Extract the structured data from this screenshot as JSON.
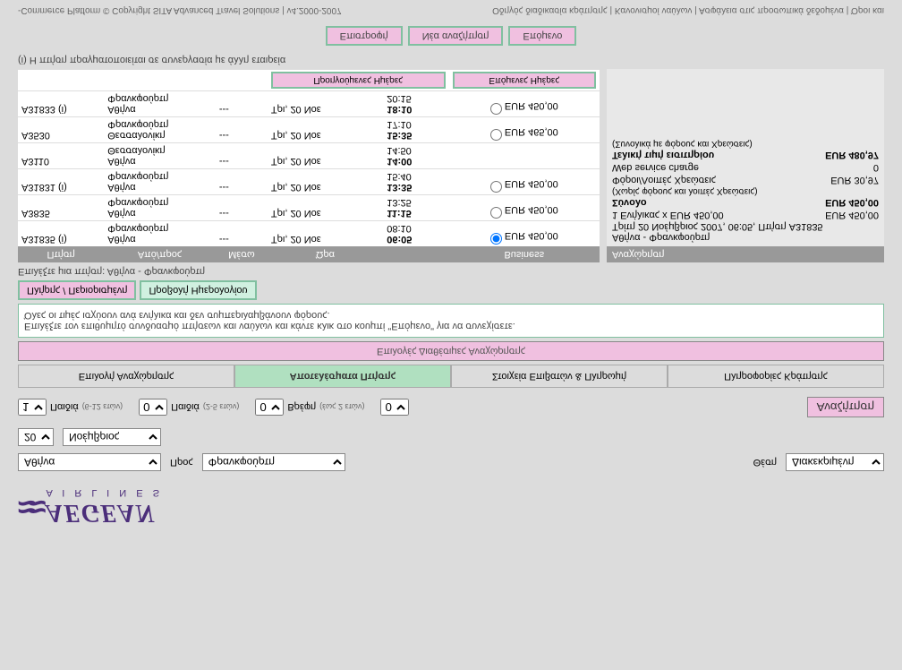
{
  "logo": {
    "name": "AEGEAN",
    "sub": "A I R L I N E S"
  },
  "search": {
    "from_value": "Αθήνα",
    "to_label": "Προς",
    "to_value": "Φρανκφούρτη",
    "day_value": "20",
    "month_value": "Νοέμβριος",
    "class_label": "Θέση",
    "class_value": "Διακεκριμένη",
    "adults_label": "Ενήλικας",
    "adults_value": "1",
    "adults_note": "(6-12 ετών)",
    "children_label": "Παιδιά",
    "children_value": "0",
    "children_note": "(2-5 ετών)",
    "children2_label": "Παιδιά",
    "children2_value": "0",
    "infants_label": "Βρέφη",
    "infants_value": "0",
    "infants_note": "(έως 2 ετών)",
    "search_btn": "Αναζήτηση"
  },
  "tabs": {
    "t1": "Επιλογή Αναχώρησης",
    "t2": "Αποτελέσματα Πτήσης",
    "t3": "Στοιχεία Επιβατών & Πληρωμή",
    "t4": "Πληροφορίες Κράτησης"
  },
  "step": "Επιλογές Διαθέσιμες Αναχώρησης",
  "info": {
    "line1": "Επιλέξτε τον επιθυμητό συνδυασμό πτήσεων και ναύλων και κάντε κλικ στο κουμπί \"Επόμενο\" για να συνεχίσετε.",
    "line2": "Όλες οι τιμές ισχύουν ανά ενήλικα και δεν συμπεριλαμβάνουν φόρους."
  },
  "subtabs": {
    "s1": "Πλήρης / Περιορισμένη",
    "s2": "Προβολή Ημερολογίου"
  },
  "select_flight": "Επιλέξτε μια πτήση: Αθήνα - Φρανκφούρτη",
  "headers": {
    "h1": "Πτήση",
    "h2": "Από/προς",
    "h3": "Μέσω",
    "h4": "Ώρα",
    "h5": "Business",
    "sub1": "Προηγούμενες Ημέρες",
    "sub2": "Επόμενες Ημέρες"
  },
  "flights": [
    {
      "code": "A31835 (i)",
      "from": "Αθήνα",
      "to": "Φρανκφούρτη",
      "via": "---",
      "date": "Τρι, 20 Νοε",
      "dep": "06:05",
      "arr": "08:10",
      "price": "EUR 450,00",
      "sel": true
    },
    {
      "code": "A3835",
      "from": "Αθήνα",
      "to": "Φρανκφούρτη",
      "via": "---",
      "date": "Τρι, 20 Νοε",
      "dep": "11:15",
      "arr": "13:25",
      "price": "EUR 450,00",
      "sel": false
    },
    {
      "code": "A31831 (i)",
      "from": "Αθήνα",
      "to": "Φρανκφούρτη",
      "via": "---",
      "date": "Τρι, 20 Νοε",
      "dep": "13:35",
      "arr": "15:40",
      "price": "EUR 450,00",
      "sel": false
    },
    {
      "code": "A3110",
      "from": "Αθήνα",
      "to": "Θεσσαλονίκη",
      "via": "---",
      "date": "Τρι, 20 Νοε",
      "dep": "14:00",
      "arr": "14:50",
      "price": "",
      "sel": false
    },
    {
      "code": "A3530",
      "from": "Θεσσαλονίκη",
      "to": "Φρανκφούρτη",
      "via": "---",
      "date": "Τρι, 20 Νοε",
      "dep": "15:35",
      "arr": "17:10",
      "price": "EUR 465,00",
      "sel": false
    },
    {
      "code": "A31833 (i)",
      "from": "Αθήνα",
      "to": "Φρανκφούρτη",
      "via": "---",
      "date": "Τρι, 20 Νοε",
      "dep": "18:10",
      "arr": "20:15",
      "price": "EUR 450,00",
      "sel": false
    }
  ],
  "summary": {
    "title": "Αναχώρηση",
    "route": "Αθήνα - Φρανκφούρτη",
    "when": "Τρίτη 20 Νοέμβριος 2007, 06:05, Πτήση A31835",
    "line1_l": "1 Ενήλικας x   EUR 450,00",
    "line1_r": "EUR  450,00",
    "line2_l": "Σύνολο",
    "line2_r": "EUR 450,00",
    "note1": "(Χωρίς φόρους και λοιπές Χρεώσεις)",
    "line3_l": "Φόροι/Λοιπές Χρεώσεις",
    "line3_r": "EUR 30,97",
    "line4_l": "Web service charge",
    "line4_r": "0",
    "line5_l": "Τελική τιμή εισιτηρίου",
    "line5_r": "EUR 480,97",
    "note2": "(Συνολικά με φόρους και Χρεώσεις)"
  },
  "note_i": "(i) Η πτήση πραγματοποιείται σε συνεργασία με άλλη εταιρεία",
  "actions": {
    "a1": "Επιστροφή",
    "a2": "Νέα αναζήτηση",
    "a3": "Επόμενο"
  },
  "footer": {
    "left": "-Commerce Platform © Copyright SITA Advanced Travel Solutions | v4.2000-2007",
    "right": "Οδηγός διαδικασία κράτησης | Κανονισμοί ναύλων | Ασφάλεια στις προσωπικά δεδομένα | Όροι και"
  }
}
